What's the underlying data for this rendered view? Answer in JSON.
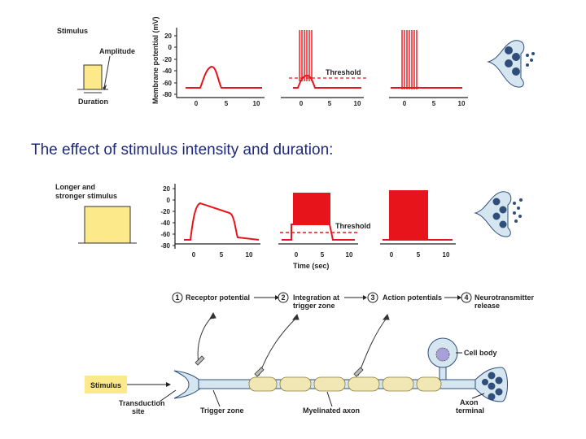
{
  "heading": "The effect of stimulus intensity and duration:",
  "top": {
    "stimulus_label": "Stimulus",
    "amplitude_label": "Amplitude",
    "duration_label": "Duration",
    "y_axis_label": "Membrane potential (mV)",
    "y_ticks": [
      "20",
      "0",
      "-20",
      "-40",
      "-60",
      "-80"
    ],
    "x_ticks": [
      "0",
      "5",
      "10"
    ],
    "threshold_label": "Threshold"
  },
  "middle": {
    "stimulus_label_line1": "Longer and",
    "stimulus_label_line2": "stronger stimulus",
    "y_ticks": [
      "20",
      "0",
      "-20",
      "-40",
      "-60",
      "-80"
    ],
    "x_ticks": [
      "0",
      "5",
      "10"
    ],
    "threshold_label": "Threshold",
    "time_label": "Time (sec)"
  },
  "bottom": {
    "steps": [
      {
        "num": "1",
        "label": "Receptor potential"
      },
      {
        "num": "2",
        "label_line1": "Integration at",
        "label_line2": "trigger zone"
      },
      {
        "num": "3",
        "label": "Action potentials"
      },
      {
        "num": "4",
        "label_line1": "Neurotransmitter",
        "label_line2": "release"
      }
    ],
    "stimulus_box": "Stimulus",
    "transduction_line1": "Transduction",
    "transduction_line2": "site",
    "trigger_zone": "Trigger zone",
    "myelinated_axon": "Myelinated axon",
    "cell_body": "Cell body",
    "axon_terminal_line1": "Axon",
    "axon_terminal_line2": "terminal"
  },
  "colors": {
    "trace": "#e8141b",
    "stimulus_fill": "#fbe98a",
    "neuron_fill": "#d6e6f0",
    "myelin_fill": "#f1e7b4",
    "vesicle": "#2f4f7a",
    "heading": "#1e2a78"
  }
}
